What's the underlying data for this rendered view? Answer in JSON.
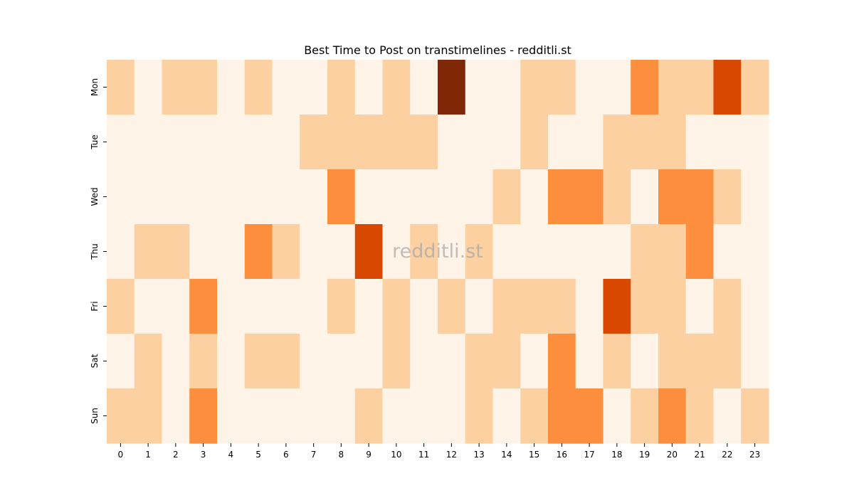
{
  "chart_data": {
    "type": "heatmap",
    "title": "Best Time to Post on transtimelines - redditli.st",
    "xlabel": "",
    "ylabel": "",
    "watermark": "redditli.st",
    "x_categories": [
      "0",
      "1",
      "2",
      "3",
      "4",
      "5",
      "6",
      "7",
      "8",
      "9",
      "10",
      "11",
      "12",
      "13",
      "14",
      "15",
      "16",
      "17",
      "18",
      "19",
      "20",
      "21",
      "22",
      "23"
    ],
    "y_categories": [
      "Mon",
      "Tue",
      "Wed",
      "Thu",
      "Fri",
      "Sat",
      "Sun"
    ],
    "values": [
      [
        1,
        0,
        1,
        1,
        0,
        1,
        0,
        0,
        1,
        0,
        1,
        0,
        5,
        0,
        0,
        1,
        1,
        0,
        0,
        2,
        1,
        1,
        4,
        1
      ],
      [
        0,
        0,
        0,
        0,
        0,
        0,
        0,
        1,
        1,
        1,
        1,
        1,
        0,
        0,
        0,
        1,
        0,
        0,
        1,
        1,
        1,
        0,
        0,
        0
      ],
      [
        0,
        0,
        0,
        0,
        0,
        0,
        0,
        0,
        2,
        0,
        0,
        0,
        0,
        0,
        1,
        0,
        2,
        2,
        1,
        0,
        2,
        2,
        1,
        0
      ],
      [
        0,
        1,
        1,
        0,
        0,
        2,
        1,
        0,
        0,
        4,
        0,
        1,
        0,
        1,
        0,
        0,
        0,
        0,
        0,
        1,
        1,
        2,
        0,
        0
      ],
      [
        1,
        0,
        0,
        2,
        0,
        0,
        0,
        0,
        1,
        0,
        1,
        0,
        1,
        0,
        1,
        1,
        1,
        0,
        4,
        1,
        1,
        0,
        1,
        0
      ],
      [
        0,
        1,
        0,
        1,
        0,
        1,
        1,
        0,
        0,
        0,
        1,
        0,
        0,
        1,
        1,
        0,
        2,
        0,
        1,
        0,
        1,
        1,
        1,
        0
      ],
      [
        1,
        1,
        0,
        2,
        0,
        0,
        0,
        0,
        0,
        1,
        0,
        0,
        0,
        1,
        0,
        1,
        2,
        2,
        0,
        1,
        2,
        1,
        0,
        1
      ]
    ],
    "colorscale": "Oranges",
    "level_colors": [
      "#fef3e7",
      "#fcd0a1",
      "#fc8e3e",
      "#e96b1c",
      "#d84801",
      "#802707"
    ],
    "grid": false,
    "legend": "none"
  }
}
